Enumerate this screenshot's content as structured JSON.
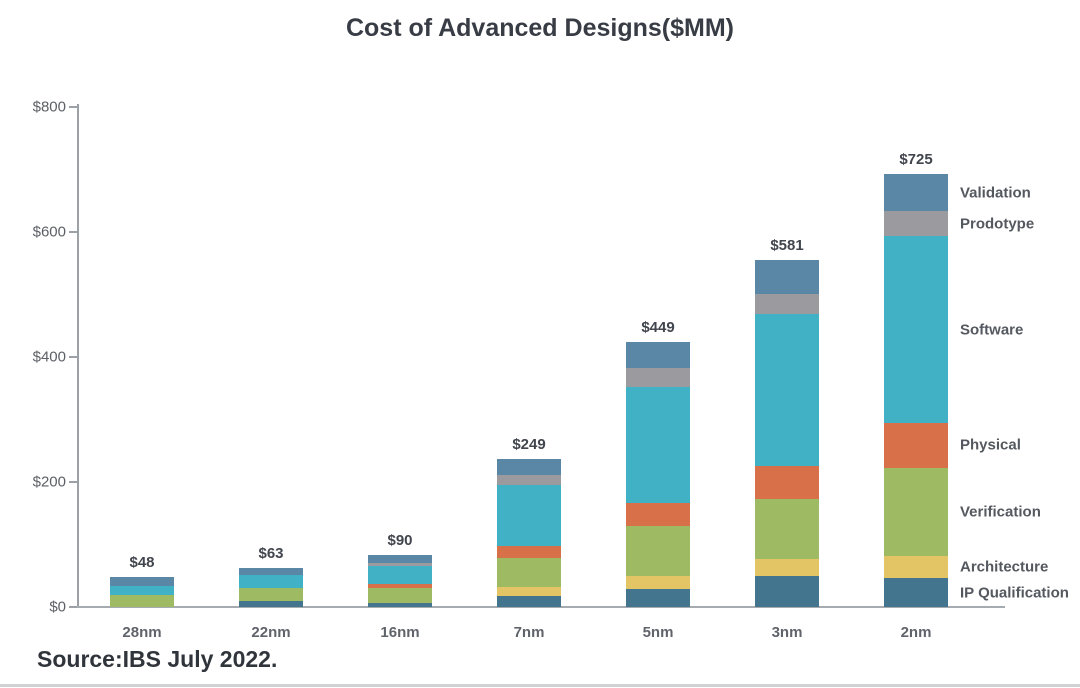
{
  "title": "Cost of Advanced Designs($MM)",
  "source": "Source:IBS July 2022.",
  "chart_data": {
    "type": "bar",
    "stacked": true,
    "title": "Cost of Advanced Designs($MM)",
    "xlabel": "",
    "ylabel": "",
    "categories": [
      "28nm",
      "22nm",
      "16nm",
      "7nm",
      "5nm",
      "3nm",
      "2nm"
    ],
    "totals": [
      "$48",
      "$63",
      "$90",
      "$249",
      "$449",
      "$581",
      "$725"
    ],
    "y_axis": {
      "min": 0,
      "max": 800,
      "ticks": [
        {
          "label": "$0",
          "value": 0
        },
        {
          "label": "$200",
          "value": 200
        },
        {
          "label": "$400",
          "value": 400
        },
        {
          "label": "$600",
          "value": 600
        },
        {
          "label": "$800",
          "value": 800
        }
      ]
    },
    "series": [
      {
        "name": "IP Qualification",
        "color": "#44758f",
        "values": [
          0,
          9,
          7,
          18,
          29,
          49,
          46
        ]
      },
      {
        "name": "Architecture",
        "color": "#e3c566",
        "values": [
          0,
          0,
          0,
          14,
          20,
          28,
          35
        ]
      },
      {
        "name": "Verification",
        "color": "#9eba62",
        "values": [
          19,
          22,
          23,
          46,
          81,
          96,
          142
        ]
      },
      {
        "name": "Physical",
        "color": "#d8714a",
        "values": [
          0,
          0,
          7,
          20,
          36,
          52,
          72
        ]
      },
      {
        "name": "Software",
        "color": "#41b1c5",
        "values": [
          15,
          20,
          28,
          98,
          186,
          244,
          298
        ]
      },
      {
        "name": "Prodotype",
        "color": "#9b9a9e",
        "values": [
          0,
          0,
          5,
          16,
          30,
          32,
          40
        ]
      },
      {
        "name": "Validation",
        "color": "#5b87a7",
        "values": [
          14,
          12,
          13,
          25,
          42,
          54,
          60
        ]
      }
    ],
    "legend": [
      "Validation",
      "Prodotype",
      "Software",
      "Physical",
      "Verification",
      "Architecture",
      "IP Qualification"
    ],
    "legend_position": "right-of-last-bar",
    "grid": false
  }
}
